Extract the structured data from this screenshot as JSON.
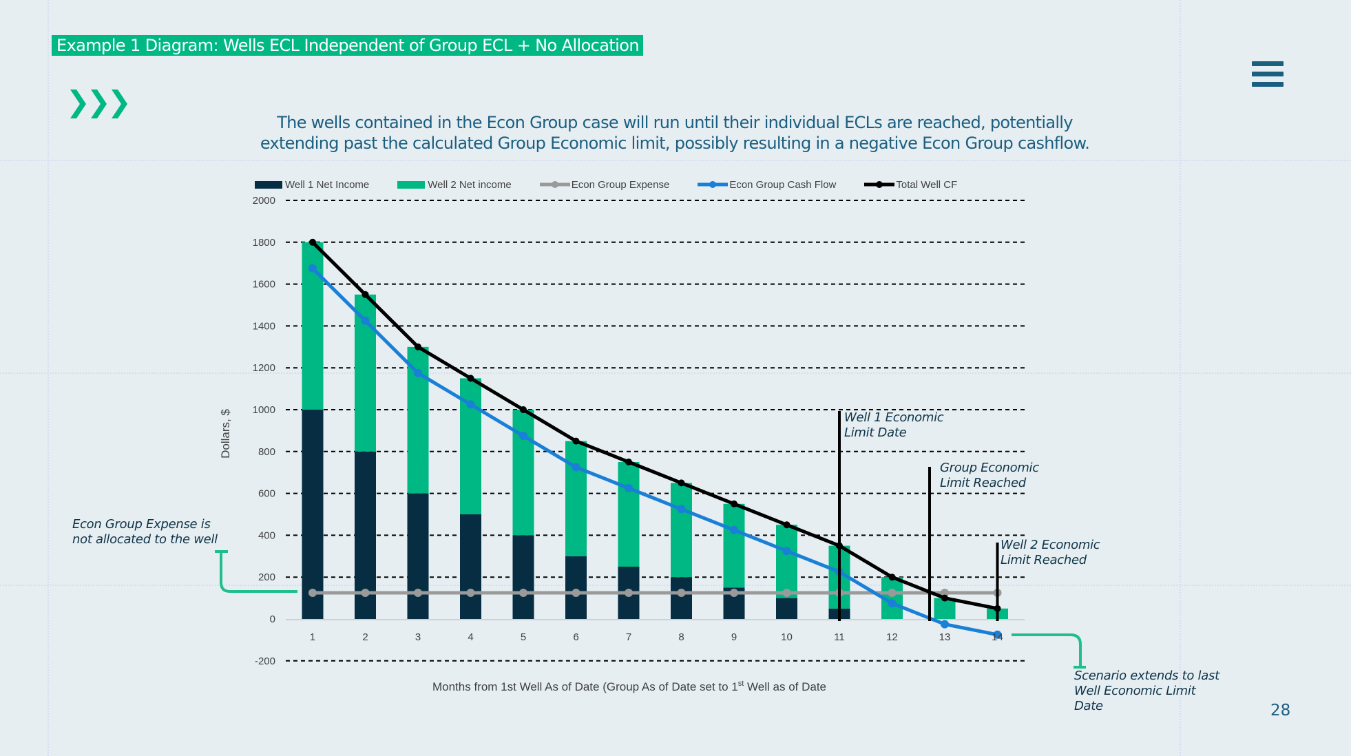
{
  "slide": {
    "title": "Example 1 Diagram: Wells ECL Independent of Group ECL + No Allocation",
    "intro_line_1": "The wells contained in the Econ Group case will run until their individual ECLs are reached, potentially",
    "intro_line_2": "extending past the calculated Group Economic limit, possibly resulting in a negative Econ Group cashflow.",
    "page_number": "28",
    "icons": {
      "chevrons": "triple-chevron-right-icon",
      "menu": "hamburger-menu-icon"
    },
    "colors": {
      "accent": "#00b884",
      "title_text": "#1b5e80",
      "background": "#e6eef2",
      "annotation_text": "#0e3347"
    }
  },
  "annotations": {
    "expense_note_1": "Econ Group Expense is",
    "expense_note_2": "not allocated to the well",
    "well1_limit_1": "Well 1 Economic",
    "well1_limit_2": "Limit Date",
    "group_limit_1": "Group Economic",
    "group_limit_2": "Limit Reached",
    "well2_limit_1": "Well 2 Economic",
    "well2_limit_2": "Limit Reached",
    "scenario_note_1": "Scenario extends to last",
    "scenario_note_2": "Well Economic Limit",
    "scenario_note_3": "Date"
  },
  "chart_data": {
    "type": "bar",
    "stacked": true,
    "title": "",
    "xlabel": "Months from 1st Well As of Date (Group As of Date set to 1st Well as of Date",
    "xlabel_parts": {
      "before_sup": "Months from 1st Well As of Date (Group As of Date set to 1",
      "sup": "st",
      "after_sup": " Well as of Date"
    },
    "ylabel": "Dollars, $",
    "ylim": [
      -200,
      2000
    ],
    "yticks": [
      -200,
      0,
      200,
      400,
      600,
      800,
      1000,
      1200,
      1400,
      1600,
      1800,
      2000
    ],
    "grid": "horizontal dashed",
    "legend_position": "top",
    "categories": [
      "1",
      "2",
      "3",
      "4",
      "5",
      "6",
      "7",
      "8",
      "9",
      "10",
      "11",
      "12",
      "13",
      "14"
    ],
    "series": [
      {
        "name": "Well 1 Net Income",
        "kind": "bar",
        "color": "#062d42",
        "values": [
          1000,
          800,
          600,
          500,
          400,
          300,
          250,
          200,
          150,
          100,
          50,
          0,
          0,
          0
        ]
      },
      {
        "name": "Well 2 Net income",
        "kind": "bar",
        "color": "#00b884",
        "values": [
          800,
          750,
          700,
          650,
          600,
          550,
          500,
          450,
          400,
          350,
          300,
          200,
          100,
          50
        ]
      },
      {
        "name": "Econ Group Expense",
        "kind": "line",
        "color": "#9a9a9a",
        "values": [
          125,
          125,
          125,
          125,
          125,
          125,
          125,
          125,
          125,
          125,
          125,
          125,
          125,
          125
        ]
      },
      {
        "name": "Econ Group Cash Flow",
        "kind": "line",
        "color": "#1a7fd6",
        "values": [
          1675,
          1425,
          1175,
          1025,
          875,
          725,
          625,
          525,
          425,
          325,
          225,
          75,
          -25,
          -75
        ]
      },
      {
        "name": "Total Well CF",
        "kind": "line",
        "color": "#000000",
        "values": [
          1800,
          1550,
          1300,
          1150,
          1000,
          850,
          750,
          650,
          550,
          450,
          350,
          200,
          100,
          50
        ]
      }
    ],
    "markers": [
      {
        "label": "Well 1 Economic Limit Date",
        "x": 11
      },
      {
        "label": "Group Economic Limit Reached",
        "x": 12.7
      },
      {
        "label": "Well 2 Economic Limit Reached",
        "x": 14
      }
    ]
  }
}
